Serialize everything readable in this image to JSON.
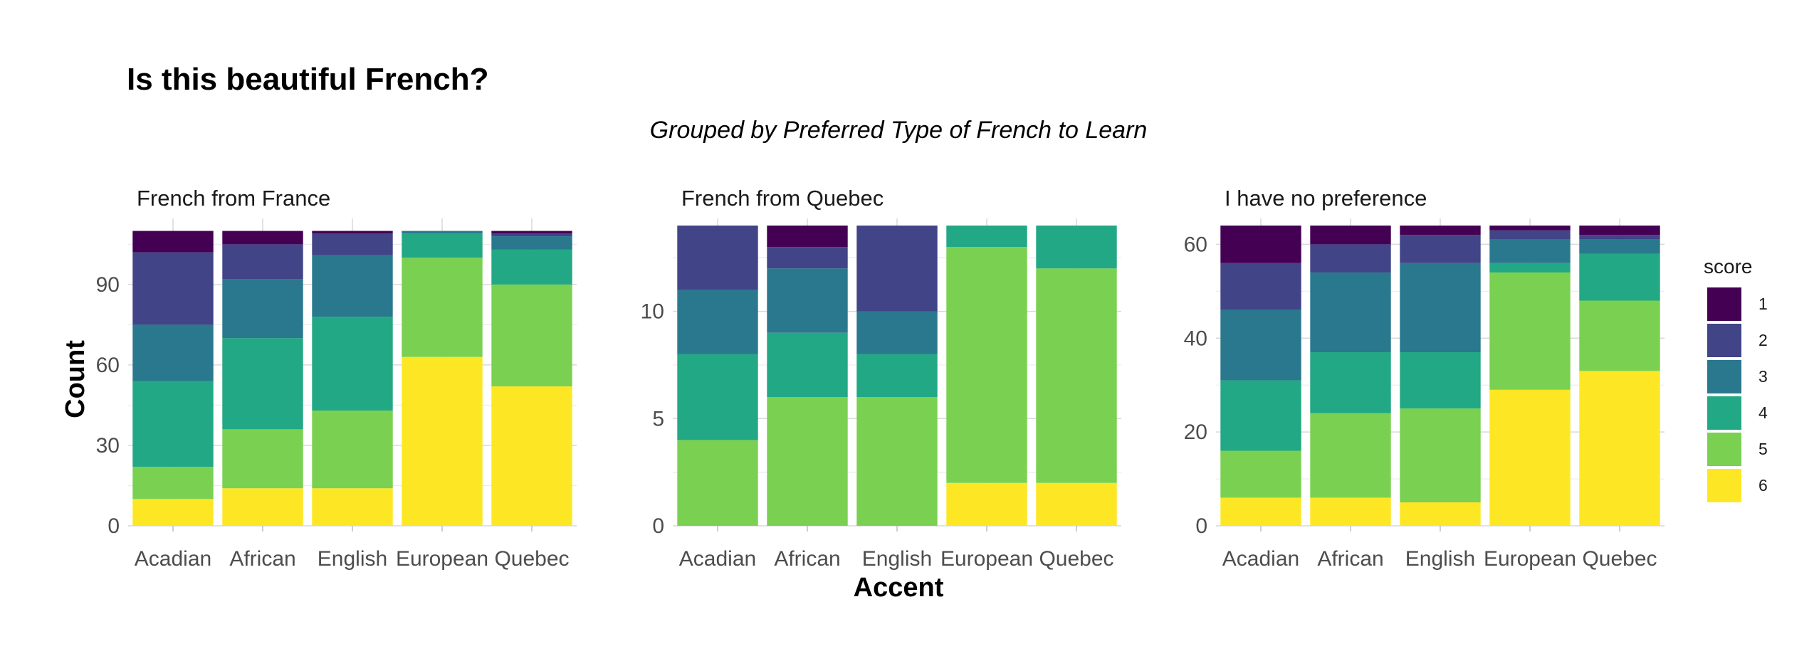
{
  "chart_data": {
    "type": "bar",
    "stacked": true,
    "title": "Is this beautiful French?",
    "subtitle": "Grouped by Preferred Type of French to Learn",
    "xlabel": "Accent",
    "ylabel": "Count",
    "categories": [
      "Acadian",
      "African",
      "English",
      "European",
      "Quebec"
    ],
    "legend": {
      "title": "score",
      "position": "right",
      "levels": [
        "1",
        "2",
        "3",
        "4",
        "5",
        "6"
      ],
      "colors": {
        "1": "#440154",
        "2": "#414487",
        "3": "#2A788E",
        "4": "#22A884",
        "5": "#7AD151",
        "6": "#FDE725"
      }
    },
    "grid": true,
    "facets": [
      {
        "label": "French from France",
        "ylim": [
          0,
          112
        ],
        "yticks": [
          0,
          30,
          60,
          90
        ],
        "series": [
          {
            "name": "6",
            "values": [
              10,
              14,
              14,
              63,
              52
            ]
          },
          {
            "name": "5",
            "values": [
              12,
              22,
              29,
              37,
              38
            ]
          },
          {
            "name": "4",
            "values": [
              32,
              34,
              35,
              9,
              13
            ]
          },
          {
            "name": "3",
            "values": [
              21,
              22,
              23,
              1,
              5
            ]
          },
          {
            "name": "2",
            "values": [
              27,
              13,
              8,
              0,
              1
            ]
          },
          {
            "name": "1",
            "values": [
              8,
              5,
              1,
              0,
              1
            ]
          }
        ]
      },
      {
        "label": "French from Quebec",
        "ylim": [
          0,
          14
        ],
        "yticks": [
          0,
          5,
          10
        ],
        "series": [
          {
            "name": "6",
            "values": [
              0,
              0,
              0,
              2,
              2
            ]
          },
          {
            "name": "5",
            "values": [
              4,
              6,
              6,
              11,
              10
            ]
          },
          {
            "name": "4",
            "values": [
              4,
              3,
              2,
              1,
              2
            ]
          },
          {
            "name": "3",
            "values": [
              3,
              3,
              2,
              0,
              0
            ]
          },
          {
            "name": "2",
            "values": [
              3,
              1,
              4,
              0,
              0
            ]
          },
          {
            "name": "1",
            "values": [
              0,
              1,
              0,
              0,
              0
            ]
          }
        ]
      },
      {
        "label": "I have no preference",
        "ylim": [
          0,
          64
        ],
        "yticks": [
          0,
          20,
          40,
          60
        ],
        "series": [
          {
            "name": "6",
            "values": [
              6,
              6,
              5,
              29,
              33
            ]
          },
          {
            "name": "5",
            "values": [
              10,
              18,
              20,
              25,
              15
            ]
          },
          {
            "name": "4",
            "values": [
              15,
              13,
              12,
              2,
              10
            ]
          },
          {
            "name": "3",
            "values": [
              15,
              17,
              19,
              5,
              3
            ]
          },
          {
            "name": "2",
            "values": [
              10,
              6,
              6,
              2,
              1
            ]
          },
          {
            "name": "1",
            "values": [
              8,
              4,
              2,
              1,
              2
            ]
          }
        ]
      }
    ]
  }
}
